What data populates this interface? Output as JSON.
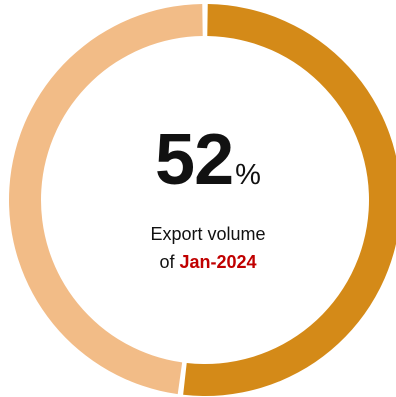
{
  "chart_data": {
    "type": "pie",
    "variant": "donut",
    "slices": [
      {
        "label": "",
        "value": 52,
        "color": "#D48A18"
      },
      {
        "label": "",
        "value": 48,
        "color": "#F2BC87"
      }
    ],
    "start_angle": "12 o'clock",
    "direction": "clockwise"
  },
  "center": {
    "value": "52",
    "unit": "%",
    "caption_line1": "Export volume",
    "caption_prefix": "of",
    "period": "Jan-2024",
    "period_color": "#C00000"
  }
}
